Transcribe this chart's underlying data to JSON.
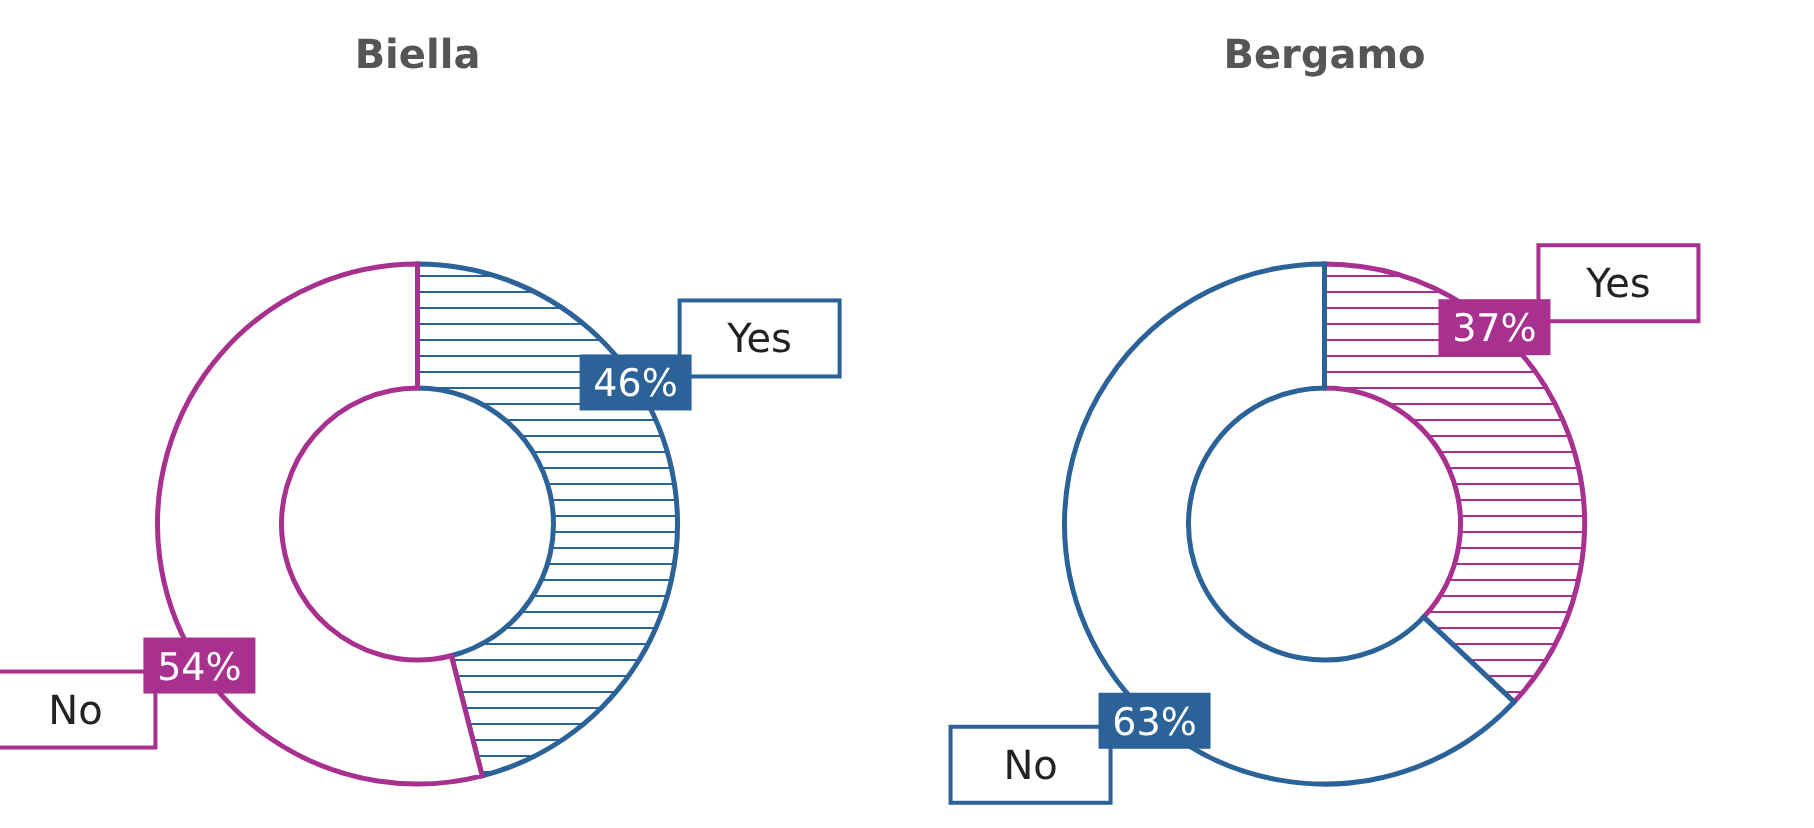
{
  "chart_data": [
    {
      "type": "donut",
      "title": "Biella",
      "categories": [
        "Yes",
        "No"
      ],
      "values": [
        46,
        54
      ],
      "colors": [
        "#2b6298",
        "#a8308f"
      ],
      "value_labels": [
        "46%",
        "54%"
      ]
    },
    {
      "type": "donut",
      "title": "Bergamo",
      "categories": [
        "Yes",
        "No"
      ],
      "values": [
        37,
        63
      ],
      "colors": [
        "#a8308f",
        "#2b6298"
      ],
      "value_labels": [
        "37%",
        "63%"
      ]
    }
  ]
}
